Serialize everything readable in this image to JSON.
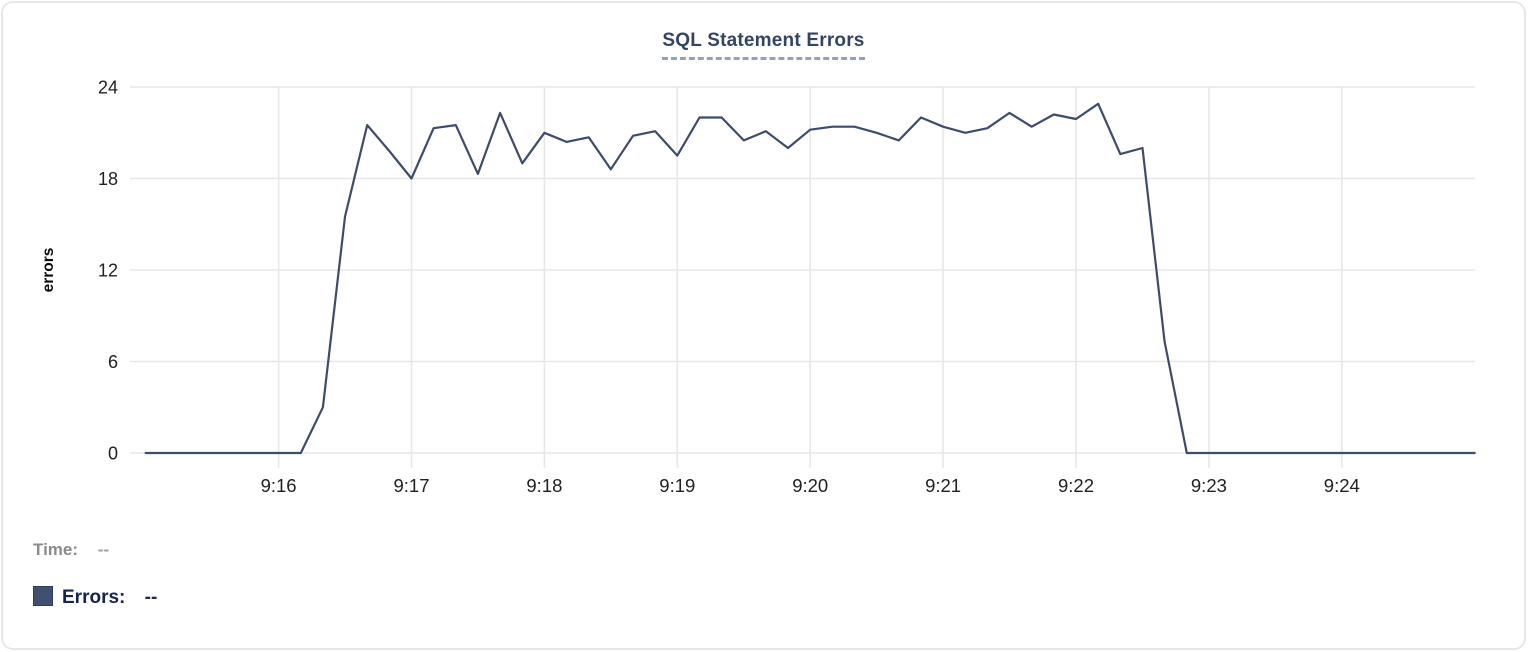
{
  "chart_data": {
    "type": "line",
    "title": "SQL Statement Errors",
    "ylabel": "errors",
    "series_name": "Errors",
    "line_color": "#3d4c6b",
    "grid_color": "#e7e7e7",
    "tick_label_color": "#212121",
    "grid": true,
    "legend_position": "none",
    "x_range": [
      "9:15:00",
      "9:25:00"
    ],
    "interval_seconds": 10,
    "x_tick_labels": [
      "9:16",
      "9:17",
      "9:18",
      "9:19",
      "9:20",
      "9:21",
      "9:22",
      "9:23",
      "9:24"
    ],
    "y_ticks": [
      0,
      6,
      12,
      18,
      24
    ],
    "ylim": [
      0,
      24
    ],
    "values": [
      0,
      0,
      0,
      0,
      0,
      0,
      0,
      0,
      3,
      15.5,
      21.5,
      19.8,
      18,
      21.3,
      21.5,
      18.3,
      22.3,
      19,
      21,
      20.4,
      20.7,
      18.6,
      20.8,
      21.1,
      19.5,
      22,
      22,
      20.5,
      21.1,
      20,
      21.2,
      21.4,
      21.4,
      21,
      20.5,
      22,
      21.4,
      21,
      21.3,
      22.3,
      21.4,
      22.2,
      21.9,
      22.9,
      19.6,
      20,
      7.3,
      0,
      0,
      0,
      0,
      0,
      0,
      0,
      0,
      0,
      0,
      0,
      0,
      0,
      0
    ]
  },
  "tooltip": {
    "time_label": "Time:",
    "time_value": "--",
    "errors_label": "Errors:",
    "errors_value": "--",
    "swatch_color": "#40506f"
  },
  "colors": {
    "title": "#344563",
    "title_underline": "#97a1b4",
    "card_border": "#e7e7e7",
    "time_label": "#8a8a8a",
    "errors_label": "#16244d"
  }
}
